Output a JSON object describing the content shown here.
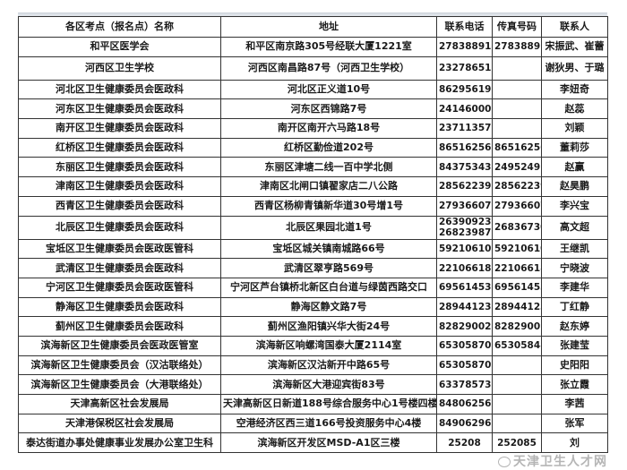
{
  "table": {
    "headers": [
      "各区考点（报名点）名称",
      "地址",
      "联系电话",
      "传真号码",
      "联系人"
    ],
    "rows": [
      {
        "name": "和平区医学会",
        "address": "和平区南京路305号经联大厦1221室",
        "phone": "27838891",
        "fax": "27838891",
        "contact": "宋振武、崔蕾"
      },
      {
        "name": "河西区卫生学校",
        "address": "河西区南昌路87号（河西卫生学校）",
        "phone": "23278651",
        "fax": "",
        "contact": "谢狄男、于璐",
        "tall": true
      },
      {
        "name": "河北区卫生健康委员会医政科",
        "address": "河北区正义道10号",
        "phone": "86295619",
        "fax": "",
        "contact": "李妞奇"
      },
      {
        "name": "河东区卫生健康委员会医政科",
        "address": "河东区西锦路7号",
        "phone": "24146000",
        "fax": "",
        "contact": "赵蕊"
      },
      {
        "name": "南开区卫生健康委员会医政科",
        "address": "南开区南开六马路18号",
        "phone": "23711357",
        "fax": "",
        "contact": "刘颖"
      },
      {
        "name": "红桥区卫生健康委员会医政科",
        "address": "红桥区勤俭道202号",
        "phone": "86516256",
        "fax": "86516256",
        "contact": "董莉莎"
      },
      {
        "name": "东丽区卫生健康委员会医政科",
        "address": "东丽区津塘二线一百中学北侧",
        "phone": "84375343",
        "fax": "24952491",
        "contact": "赵赢"
      },
      {
        "name": "津南区卫生健康委员会医政科",
        "address": "津南区北闸口镇翟家店二八公路",
        "phone": "28562239",
        "fax": "28562239",
        "contact": "赵昊鹏"
      },
      {
        "name": "西青区卫生健康委员会医政科",
        "address": "西青区杨柳青镇新华道30号增1号",
        "phone": "27936607",
        "fax": "27936607",
        "contact": "李兴宝"
      },
      {
        "name": "北辰区卫生健康委员会医政科",
        "address": "北辰区果园北道1号",
        "phone": "26390923",
        "phone2": "26823987",
        "fax": "26836730",
        "contact": "高文超",
        "tall": true
      },
      {
        "name": "宝坻区卫生健康委员会医政医管科",
        "address": "宝坻区城关镇南城路66号",
        "phone": "59210610",
        "fax": "59210610",
        "contact": "王继凯"
      },
      {
        "name": "武清区卫生健康委员会医政科",
        "address": "武清区翠亨路569号",
        "phone": "22106618",
        "fax": "22106618",
        "contact": "宁晓波"
      },
      {
        "name": "宁河区卫生健康委员会医政医管科",
        "address": "宁河区芦台镇桥北新区白台道与绿茵西路交口",
        "phone": "69561453",
        "fax": "69561453",
        "contact": "李建华"
      },
      {
        "name": "静海区卫生健康委员会医政科",
        "address": "静海区静文路7号",
        "phone": "28944123",
        "fax": "28944123",
        "contact": "丁红静"
      },
      {
        "name": "蓟州区卫生健康委员会医政科",
        "address": "蓟州区渔阳镇兴华大街24号",
        "phone": "82829002",
        "fax": "82829001",
        "contact": "赵东婷"
      },
      {
        "name": "滨海新区卫生健康委员会医政医管室",
        "address": "滨海新区响螺湾国泰大厦2114室",
        "phone": "65305870",
        "fax": "65305848",
        "contact": "张建莹"
      },
      {
        "name": "滨海新区卫生健康委员会（汉沽联络处）",
        "address": "滨海新区汉沽新开中路65号",
        "phone": "65305870",
        "fax": "",
        "contact": "史阳阳"
      },
      {
        "name": "滨海新区卫生健康委员会（大港联络处）",
        "address": "滨海新区大港迎宾街83号",
        "phone": "63378573",
        "fax": "",
        "contact": "张立霞"
      },
      {
        "name": "天津高新区社会发展局",
        "address": "天津高新区日新道188号综合服务中心1号楼四楼",
        "phone": "84806256",
        "fax": "",
        "contact": "李茜"
      },
      {
        "name": "天津港保税区社会发展局",
        "address": "空港经济区西三道166号投资服务中心4楼",
        "phone": "84906296",
        "fax": "",
        "contact": "张军"
      },
      {
        "name": "泰达街道办事处健康事业发展办公室卫生科",
        "address": "滨海新区开发区MSD-A1区三楼",
        "phone": "25208",
        "fax": "252085",
        "contact": "刘"
      }
    ]
  },
  "watermark": "天津卫生人才网"
}
